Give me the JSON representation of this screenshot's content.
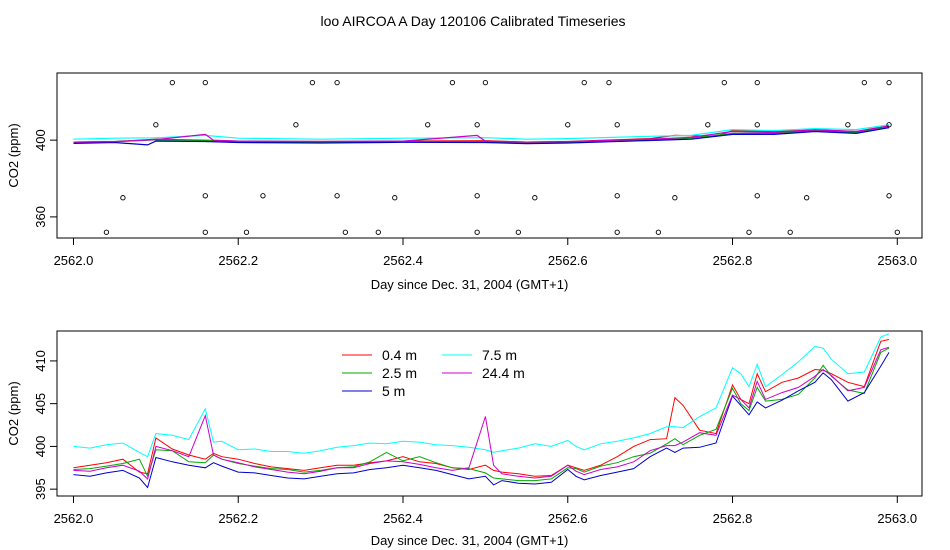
{
  "page_title": "loo AIRCOA A  Day 120106  Calibrated Timeseries",
  "chart_data": [
    {
      "type": "scatter",
      "xlabel": "Day since Dec. 31, 2004 (GMT+1)",
      "ylabel": "CO2 (ppm)",
      "xlim": [
        2561.98,
        2563.03
      ],
      "ylim": [
        349,
        435
      ],
      "x_ticks": [
        "2562.0",
        "2562.2",
        "2562.4",
        "2562.6",
        "2562.8",
        "2563.0"
      ],
      "y_ticks": [
        "360",
        "400"
      ],
      "lines": [
        {
          "series": "0.4 m",
          "color": "#ff0000",
          "values": [
            [
              2562.0,
              399
            ],
            [
              2562.05,
              399.3
            ],
            [
              2562.1,
              400.5
            ],
            [
              2562.16,
              400
            ],
            [
              2562.2,
              399.5
            ],
            [
              2562.3,
              399.3
            ],
            [
              2562.4,
              399.5
            ],
            [
              2562.5,
              399.7
            ],
            [
              2562.55,
              399
            ],
            [
              2562.6,
              399.3
            ],
            [
              2562.7,
              400.8
            ],
            [
              2562.73,
              402.5
            ],
            [
              2562.78,
              402
            ],
            [
              2562.8,
              405
            ],
            [
              2562.85,
              404.5
            ],
            [
              2562.9,
              405.5
            ],
            [
              2562.95,
              404.5
            ],
            [
              2562.99,
              407.5
            ]
          ]
        },
        {
          "series": "2.5 m",
          "color": "#00aa00",
          "values": [
            [
              2562.0,
              398.8
            ],
            [
              2562.05,
              399.2
            ],
            [
              2562.1,
              400.2
            ],
            [
              2562.16,
              399.8
            ],
            [
              2562.2,
              399.2
            ],
            [
              2562.3,
              399
            ],
            [
              2562.4,
              399.3
            ],
            [
              2562.5,
              399.2
            ],
            [
              2562.55,
              398.8
            ],
            [
              2562.6,
              399
            ],
            [
              2562.7,
              400.3
            ],
            [
              2562.75,
              401
            ],
            [
              2562.8,
              403.5
            ],
            [
              2562.85,
              403.5
            ],
            [
              2562.9,
              405
            ],
            [
              2562.95,
              404
            ],
            [
              2562.99,
              407
            ]
          ]
        },
        {
          "series": "5 m",
          "color": "#0000cc",
          "values": [
            [
              2562.0,
              398.3
            ],
            [
              2562.05,
              398.8
            ],
            [
              2562.09,
              397.5
            ],
            [
              2562.1,
              399.5
            ],
            [
              2562.16,
              399.3
            ],
            [
              2562.2,
              398.8
            ],
            [
              2562.3,
              398.5
            ],
            [
              2562.4,
              398.9
            ],
            [
              2562.5,
              398.8
            ],
            [
              2562.55,
              398.2
            ],
            [
              2562.6,
              398.5
            ],
            [
              2562.7,
              399.8
            ],
            [
              2562.75,
              400.5
            ],
            [
              2562.8,
              403
            ],
            [
              2562.85,
              403
            ],
            [
              2562.9,
              404.5
            ],
            [
              2562.95,
              403.5
            ],
            [
              2562.99,
              406.5
            ]
          ]
        },
        {
          "series": "7.5 m",
          "color": "#00ffff",
          "values": [
            [
              2562.0,
              400.5
            ],
            [
              2562.05,
              401
            ],
            [
              2562.1,
              401.2
            ],
            [
              2562.16,
              402.5
            ],
            [
              2562.2,
              401
            ],
            [
              2562.3,
              400.5
            ],
            [
              2562.4,
              401
            ],
            [
              2562.5,
              401.3
            ],
            [
              2562.55,
              400.5
            ],
            [
              2562.6,
              400.8
            ],
            [
              2562.7,
              402
            ],
            [
              2562.75,
              402.5
            ],
            [
              2562.8,
              405.5
            ],
            [
              2562.85,
              405
            ],
            [
              2562.9,
              406
            ],
            [
              2562.95,
              405.5
            ],
            [
              2562.99,
              408
            ]
          ]
        },
        {
          "series": "24.4 m",
          "color": "#cc00cc",
          "values": [
            [
              2562.0,
              399
            ],
            [
              2562.05,
              399.2
            ],
            [
              2562.1,
              400.3
            ],
            [
              2562.16,
              403
            ],
            [
              2562.17,
              400
            ],
            [
              2562.2,
              399.5
            ],
            [
              2562.3,
              399.3
            ],
            [
              2562.4,
              399.5
            ],
            [
              2562.49,
              402.5
            ],
            [
              2562.5,
              399.4
            ],
            [
              2562.55,
              399
            ],
            [
              2562.6,
              399.2
            ],
            [
              2562.7,
              400.5
            ],
            [
              2562.75,
              401.5
            ],
            [
              2562.8,
              404.5
            ],
            [
              2562.85,
              404
            ],
            [
              2562.9,
              405.3
            ],
            [
              2562.95,
              404.5
            ],
            [
              2562.99,
              407.3
            ]
          ]
        }
      ],
      "scatter_points": [
        [
          2562.04,
          352
        ],
        [
          2562.06,
          370
        ],
        [
          2562.1,
          408
        ],
        [
          2562.12,
          430
        ],
        [
          2562.16,
          352
        ],
        [
          2562.16,
          371
        ],
        [
          2562.16,
          430
        ],
        [
          2562.21,
          352
        ],
        [
          2562.23,
          371
        ],
        [
          2562.27,
          408
        ],
        [
          2562.29,
          430
        ],
        [
          2562.32,
          371
        ],
        [
          2562.32,
          430
        ],
        [
          2562.33,
          352
        ],
        [
          2562.37,
          352
        ],
        [
          2562.39,
          370
        ],
        [
          2562.43,
          408
        ],
        [
          2562.46,
          430
        ],
        [
          2562.49,
          352
        ],
        [
          2562.49,
          371
        ],
        [
          2562.49,
          408
        ],
        [
          2562.5,
          430
        ],
        [
          2562.54,
          352
        ],
        [
          2562.56,
          370
        ],
        [
          2562.6,
          408
        ],
        [
          2562.62,
          430
        ],
        [
          2562.66,
          352
        ],
        [
          2562.66,
          371
        ],
        [
          2562.66,
          408
        ],
        [
          2562.65,
          430
        ],
        [
          2562.71,
          352
        ],
        [
          2562.73,
          370
        ],
        [
          2562.77,
          408
        ],
        [
          2562.79,
          430
        ],
        [
          2562.82,
          352
        ],
        [
          2562.83,
          371
        ],
        [
          2562.83,
          408
        ],
        [
          2562.83,
          430
        ],
        [
          2562.87,
          352
        ],
        [
          2562.89,
          370
        ],
        [
          2562.94,
          408
        ],
        [
          2562.96,
          430
        ],
        [
          2562.99,
          430
        ],
        [
          2562.99,
          408
        ],
        [
          2562.99,
          371
        ],
        [
          2563.0,
          352
        ]
      ]
    },
    {
      "type": "line",
      "xlabel": "Day since Dec. 31, 2004 (GMT+1)",
      "ylabel": "CO2 (ppm)",
      "xlim": [
        2561.98,
        2563.03
      ],
      "ylim": [
        394.2,
        413.5
      ],
      "x_ticks": [
        "2562.0",
        "2562.2",
        "2562.4",
        "2562.6",
        "2562.8",
        "2563.0"
      ],
      "y_ticks": [
        "395",
        "400",
        "405",
        "410"
      ],
      "legend": [
        "0.4 m",
        "2.5 m",
        "5 m",
        "7.5 m",
        "24.4 m"
      ],
      "legend_placement": "top-center",
      "x": [
        2562.0,
        2562.02,
        2562.04,
        2562.06,
        2562.08,
        2562.09,
        2562.1,
        2562.12,
        2562.14,
        2562.16,
        2562.17,
        2562.18,
        2562.2,
        2562.22,
        2562.24,
        2562.26,
        2562.28,
        2562.3,
        2562.32,
        2562.34,
        2562.36,
        2562.38,
        2562.4,
        2562.42,
        2562.44,
        2562.46,
        2562.48,
        2562.5,
        2562.51,
        2562.52,
        2562.54,
        2562.56,
        2562.58,
        2562.6,
        2562.61,
        2562.62,
        2562.64,
        2562.66,
        2562.68,
        2562.7,
        2562.72,
        2562.73,
        2562.74,
        2562.76,
        2562.78,
        2562.8,
        2562.81,
        2562.82,
        2562.83,
        2562.84,
        2562.86,
        2562.88,
        2562.9,
        2562.91,
        2562.92,
        2562.94,
        2562.96,
        2562.98,
        2562.99
      ],
      "series": [
        {
          "name": "0.4 m",
          "color": "#ff0000",
          "values": [
            397.5,
            397.8,
            398.1,
            398.5,
            397,
            396.8,
            401,
            399.7,
            399,
            398.5,
            399.2,
            398.8,
            398.5,
            398,
            397.6,
            397.4,
            397.2,
            397.5,
            397.8,
            397.8,
            398.1,
            398.3,
            398.8,
            398.2,
            398.0,
            397.5,
            397.3,
            397.8,
            397.2,
            397.0,
            396.8,
            396.5,
            396.6,
            397.8,
            397.5,
            397.2,
            397.8,
            398.8,
            400,
            400.8,
            400.9,
            405.7,
            404.8,
            401.9,
            401.5,
            407.2,
            405.5,
            405,
            408.5,
            406.4,
            407.5,
            408,
            409,
            408.9,
            408.5,
            407.5,
            407,
            412.3,
            412.5
          ]
        },
        {
          "name": "2.5 m",
          "color": "#00aa00",
          "values": [
            397.3,
            397.4,
            397.7,
            398,
            398.5,
            396.5,
            399.6,
            399.5,
            398.2,
            398.1,
            399,
            398.5,
            398,
            397.7,
            397.4,
            397.3,
            397,
            397.2,
            397.5,
            397.6,
            398.2,
            399.3,
            398.3,
            398.8,
            398.1,
            397.5,
            397.4,
            396.9,
            396.3,
            396.2,
            396,
            396,
            396.2,
            397.5,
            397.4,
            397,
            397.7,
            398.1,
            398.8,
            399.2,
            400.3,
            400.9,
            400.2,
            401.3,
            402,
            406.8,
            405,
            404.2,
            406.9,
            405.3,
            405.5,
            406.1,
            408,
            409.5,
            408.2,
            406.6,
            406.2,
            411,
            411.5
          ]
        },
        {
          "name": "5 m",
          "color": "#0000cc",
          "values": [
            396.7,
            396.5,
            396.9,
            397.2,
            396.3,
            395.2,
            398.7,
            398.2,
            397.8,
            397.5,
            398.1,
            397.7,
            397,
            396.9,
            396.6,
            396.3,
            396.2,
            396.5,
            396.8,
            396.9,
            397.3,
            397.5,
            397.8,
            397.5,
            397.2,
            396.7,
            396.2,
            396.5,
            395.5,
            396,
            395.7,
            395.6,
            395.8,
            397.3,
            396.5,
            396.1,
            396.6,
            397,
            397.4,
            398.8,
            399.8,
            399.3,
            399.8,
            399.9,
            400.4,
            405.9,
            404.8,
            403.7,
            405.2,
            404.5,
            405.4,
            406.5,
            407.5,
            408.6,
            407.8,
            405.3,
            406.3,
            409.4,
            411
          ]
        },
        {
          "name": "7.5 m",
          "color": "#00ffff",
          "values": [
            400,
            399.8,
            400.2,
            400.4,
            399.3,
            398.8,
            401.5,
            401.3,
            400.8,
            404.4,
            400.5,
            400.6,
            399.6,
            399.7,
            399.4,
            399.4,
            399.2,
            399.5,
            399.9,
            400.1,
            400.4,
            400.3,
            400.6,
            400.5,
            400.2,
            400.1,
            399.9,
            399.6,
            399.3,
            399.5,
            399.8,
            400.3,
            400,
            400.7,
            400,
            399.6,
            400.3,
            400.6,
            401,
            401.5,
            402.3,
            402.3,
            402.2,
            403.5,
            404.5,
            409.2,
            408.5,
            407,
            409.6,
            407,
            408.4,
            409.9,
            411.7,
            411.5,
            410.2,
            408.5,
            408.7,
            412.8,
            413.2
          ]
        },
        {
          "name": "24.4 m",
          "color": "#cc00cc",
          "values": [
            397.2,
            397.1,
            397.5,
            397.8,
            397.1,
            396.2,
            400,
            399.5,
            398.8,
            403.6,
            399,
            398.5,
            398.1,
            397.6,
            397.3,
            397,
            396.8,
            397.1,
            397.5,
            397.5,
            398,
            398.3,
            398.2,
            397.9,
            397.5,
            397.2,
            397.5,
            403.5,
            397.8,
            396.8,
            396.5,
            396.3,
            396.5,
            397.8,
            397.1,
            396.7,
            397.3,
            397.6,
            398.2,
            399.5,
            400.1,
            400.1,
            400.5,
            401.6,
            401.3,
            406,
            405.5,
            404.5,
            407.6,
            405.5,
            406.3,
            406.9,
            408.2,
            409,
            408.3,
            406.5,
            406.9,
            411.3,
            411.6
          ]
        }
      ]
    }
  ]
}
